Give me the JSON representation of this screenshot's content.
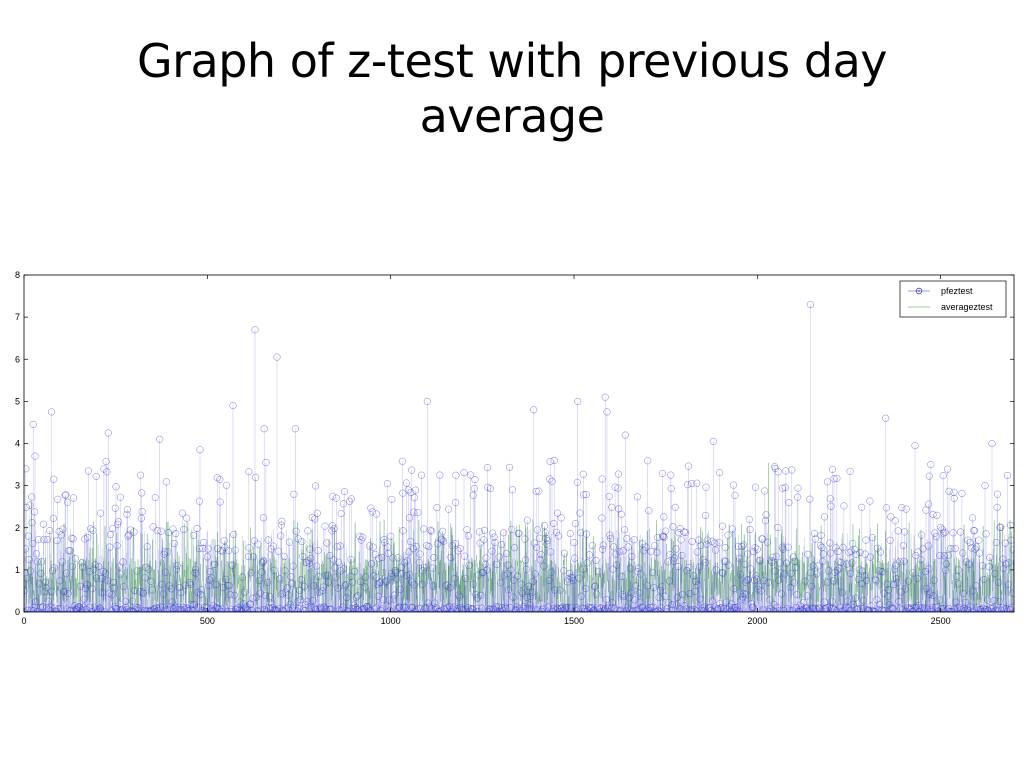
{
  "slide": {
    "title": "Graph of z-test with previous day average"
  },
  "chart_data": {
    "type": "line",
    "title": "Graph of z-test with previous day average",
    "xlabel": "",
    "ylabel": "",
    "xlim": [
      0,
      2700
    ],
    "ylim": [
      0,
      8
    ],
    "x_ticks": [
      0,
      500,
      1000,
      1500,
      2000,
      2500
    ],
    "y_ticks": [
      0,
      1,
      2,
      3,
      4,
      5,
      6,
      7,
      8
    ],
    "grid": false,
    "legend_position": "top-right",
    "colors": {
      "pfeztest": "#3b3bd6",
      "averageztest": "#3a9a3a",
      "axis": "#000000"
    },
    "series": [
      {
        "name": "pfeztest",
        "style": "stem-circle",
        "n_points": 2700,
        "notable_peaks": [
          {
            "x": 5,
            "y": 3.4
          },
          {
            "x": 25,
            "y": 4.45
          },
          {
            "x": 30,
            "y": 3.7
          },
          {
            "x": 75,
            "y": 4.75
          },
          {
            "x": 230,
            "y": 4.25
          },
          {
            "x": 370,
            "y": 4.1
          },
          {
            "x": 480,
            "y": 3.85
          },
          {
            "x": 570,
            "y": 4.9
          },
          {
            "x": 630,
            "y": 6.7
          },
          {
            "x": 655,
            "y": 4.35
          },
          {
            "x": 690,
            "y": 6.05
          },
          {
            "x": 740,
            "y": 4.35
          },
          {
            "x": 1100,
            "y": 5.0
          },
          {
            "x": 1390,
            "y": 4.8
          },
          {
            "x": 1510,
            "y": 5.0
          },
          {
            "x": 1585,
            "y": 5.1
          },
          {
            "x": 1590,
            "y": 4.75
          },
          {
            "x": 1640,
            "y": 4.2
          },
          {
            "x": 1880,
            "y": 4.05
          },
          {
            "x": 2145,
            "y": 7.3
          },
          {
            "x": 2350,
            "y": 4.6
          },
          {
            "x": 2430,
            "y": 3.95
          },
          {
            "x": 2640,
            "y": 4.0
          }
        ]
      },
      {
        "name": "averageztest",
        "style": "line",
        "n_points": 2700,
        "notable_peaks": [
          {
            "x": 20,
            "y": 2.6
          },
          {
            "x": 2030,
            "y": 3.55
          }
        ]
      }
    ]
  }
}
